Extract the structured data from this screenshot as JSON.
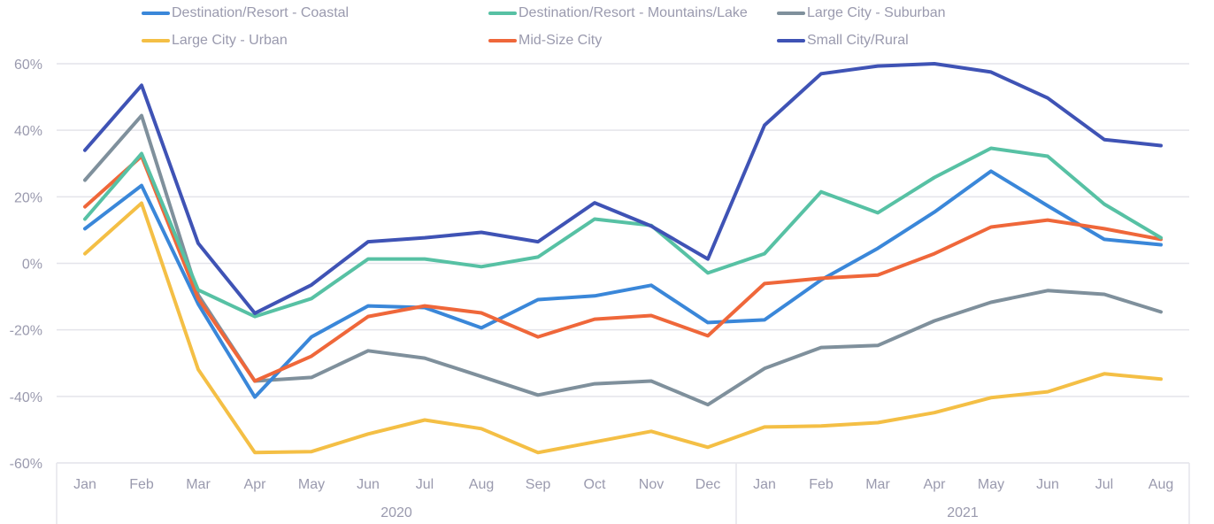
{
  "chart_data": {
    "type": "line",
    "title": "",
    "xlabel": "",
    "ylabel": "",
    "ylim": [
      -60,
      60
    ],
    "yticks": [
      60,
      40,
      20,
      0,
      -20,
      -40,
      -60
    ],
    "ytick_labels": [
      "60%",
      "40%",
      "20%",
      "0%",
      "-20%",
      "-40%",
      "-60%"
    ],
    "grid": true,
    "legend_position": "top",
    "x_groups": [
      {
        "label": "2020",
        "months": [
          "Jan",
          "Feb",
          "Mar",
          "Apr",
          "May",
          "Jun",
          "Jul",
          "Aug",
          "Sep",
          "Oct",
          "Nov",
          "Dec"
        ]
      },
      {
        "label": "2021",
        "months": [
          "Jan",
          "Feb",
          "Mar",
          "Apr",
          "May",
          "Jun",
          "Jul",
          "Aug"
        ]
      }
    ],
    "categories": [
      "Jan 2020",
      "Feb 2020",
      "Mar 2020",
      "Apr 2020",
      "May 2020",
      "Jun 2020",
      "Jul 2020",
      "Aug 2020",
      "Sep 2020",
      "Oct 2020",
      "Nov 2020",
      "Dec 2020",
      "Jan 2021",
      "Feb 2021",
      "Mar 2021",
      "Apr 2021",
      "May 2021",
      "Jun 2021",
      "Jul 2021",
      "Aug 2021"
    ],
    "series": [
      {
        "name": "Destination/Resort - Coastal",
        "color": "#3a87d9",
        "values": [
          10.4,
          23.4,
          -12.2,
          -40.2,
          -22.1,
          -12.8,
          -13.3,
          -19.4,
          -10.9,
          -9.8,
          -6.6,
          -17.8,
          -17.0,
          -5.0,
          4.5,
          15.4,
          27.7,
          17.3,
          7.2,
          5.6
        ]
      },
      {
        "name": "Destination/Resort - Mountains/Lake",
        "color": "#57c1a4",
        "values": [
          13.3,
          33.0,
          -8.0,
          -16.0,
          -10.6,
          1.3,
          1.3,
          -1.0,
          1.9,
          13.3,
          11.4,
          -2.9,
          2.9,
          21.5,
          15.2,
          25.8,
          34.6,
          32.2,
          17.8,
          7.7
        ]
      },
      {
        "name": "Large City - Suburban",
        "color": "#7f909c",
        "values": [
          25.0,
          44.4,
          -9.5,
          -35.4,
          -34.3,
          -26.3,
          -28.5,
          -34.0,
          -39.6,
          -36.2,
          -35.4,
          -42.5,
          -31.6,
          -25.3,
          -24.7,
          -17.3,
          -11.7,
          -8.2,
          -9.3,
          -14.6
        ]
      },
      {
        "name": "Large City - Urban",
        "color": "#f4bf45",
        "values": [
          2.9,
          18.1,
          -31.9,
          -56.9,
          -56.6,
          -51.3,
          -47.1,
          -49.7,
          -56.9,
          -53.7,
          -50.5,
          -55.3,
          -49.2,
          -48.9,
          -47.9,
          -44.9,
          -40.4,
          -38.6,
          -33.2,
          -34.8
        ]
      },
      {
        "name": "Mid-Size City",
        "color": "#ef673a",
        "values": [
          17.0,
          32.2,
          -10.6,
          -35.4,
          -27.9,
          -16.0,
          -12.8,
          -14.9,
          -22.1,
          -16.8,
          -15.7,
          -21.8,
          -6.1,
          -4.5,
          -3.5,
          2.9,
          10.9,
          13.0,
          10.4,
          7.2
        ]
      },
      {
        "name": "Small City/Rural",
        "color": "#3f53b5",
        "values": [
          34.0,
          53.5,
          6.0,
          -15.0,
          -6.5,
          6.5,
          7.7,
          9.3,
          6.5,
          18.2,
          11.2,
          1.3,
          41.5,
          57.0,
          59.3,
          60.0,
          57.5,
          49.7,
          37.2,
          35.4
        ]
      }
    ]
  }
}
